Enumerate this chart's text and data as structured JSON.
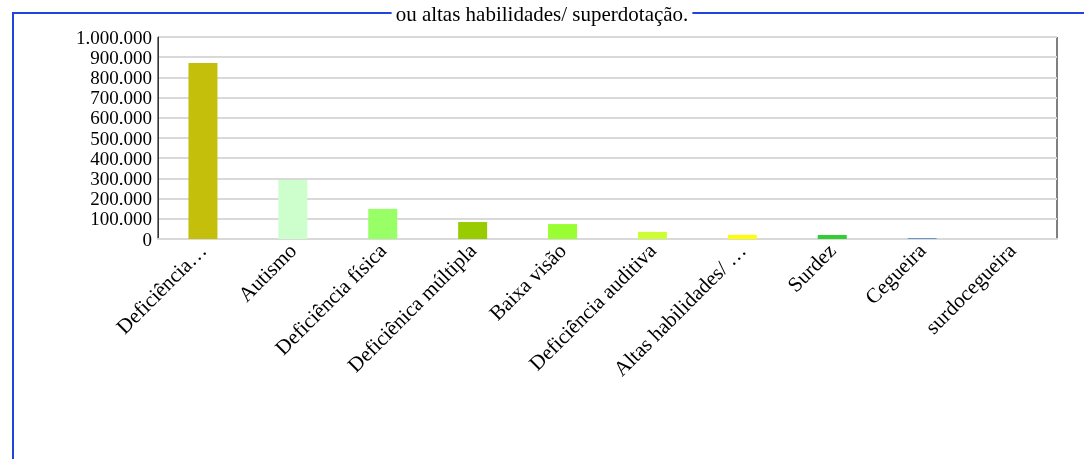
{
  "chart_data": {
    "type": "bar",
    "title": "ou altas habilidades/ superdotação.",
    "categories": [
      "Deficiência…",
      "Autismo",
      "Deficiência física",
      "Deficiênica múltipla",
      "Baixa visão",
      "Deficiência auditiva",
      "Altas habilidades/ …",
      "Surdez",
      "Cegueira",
      "surdocegueira"
    ],
    "values": [
      871000,
      292000,
      149000,
      84000,
      74000,
      35000,
      20000,
      20000,
      5000,
      0
    ],
    "colors": [
      "#c4bf0a",
      "#ccffcc",
      "#99ff66",
      "#99cc00",
      "#99ff33",
      "#ccff33",
      "#ffff00",
      "#33cc33",
      "#6699cc",
      "#99ccff"
    ],
    "ylim": [
      0,
      1000000
    ],
    "yticks": [
      {
        "value": 0,
        "label": "0"
      },
      {
        "value": 100000,
        "label": "100.000"
      },
      {
        "value": 200000,
        "label": "200.000"
      },
      {
        "value": 300000,
        "label": "300.000"
      },
      {
        "value": 400000,
        "label": "400.000"
      },
      {
        "value": 500000,
        "label": "500.000"
      },
      {
        "value": 600000,
        "label": "600.000"
      },
      {
        "value": 700000,
        "label": "700.000"
      },
      {
        "value": 800000,
        "label": "800.000"
      },
      {
        "value": 900000,
        "label": "900.000"
      },
      {
        "value": 1000000,
        "label": "1.000.000"
      }
    ],
    "grid": "y"
  }
}
